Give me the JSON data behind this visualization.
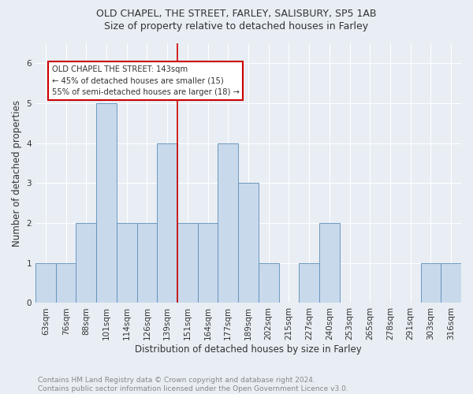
{
  "title1": "OLD CHAPEL, THE STREET, FARLEY, SALISBURY, SP5 1AB",
  "title2": "Size of property relative to detached houses in Farley",
  "xlabel": "Distribution of detached houses by size in Farley",
  "ylabel": "Number of detached properties",
  "categories": [
    "63sqm",
    "76sqm",
    "88sqm",
    "101sqm",
    "114sqm",
    "126sqm",
    "139sqm",
    "151sqm",
    "164sqm",
    "177sqm",
    "189sqm",
    "202sqm",
    "215sqm",
    "227sqm",
    "240sqm",
    "253sqm",
    "265sqm",
    "278sqm",
    "291sqm",
    "303sqm",
    "316sqm"
  ],
  "values": [
    1,
    1,
    2,
    5,
    2,
    2,
    4,
    2,
    2,
    4,
    3,
    1,
    0,
    1,
    2,
    0,
    0,
    0,
    0,
    1,
    1
  ],
  "bar_color": "#c8d9ec",
  "bar_edge_color": "#5b8db8",
  "subject_line_index": 6,
  "annotation_line1": "OLD CHAPEL THE STREET: 143sqm",
  "annotation_line2": "← 45% of detached houses are smaller (15)",
  "annotation_line3": "55% of semi-detached houses are larger (18) →",
  "annotation_box_color": "white",
  "annotation_edge_color": "#cc0000",
  "vline_color": "#cc0000",
  "ylim": [
    0,
    6.5
  ],
  "yticks": [
    0,
    1,
    2,
    3,
    4,
    5,
    6
  ],
  "footer": "Contains HM Land Registry data © Crown copyright and database right 2024.\nContains public sector information licensed under the Open Government Licence v3.0.",
  "bg_color": "#e8eef4",
  "plot_bg_color": "#e8eef4",
  "title1_fontsize": 9,
  "title2_fontsize": 9,
  "ylabel_fontsize": 8.5,
  "xlabel_fontsize": 8.5,
  "tick_fontsize": 7.5,
  "footer_fontsize": 6.5
}
